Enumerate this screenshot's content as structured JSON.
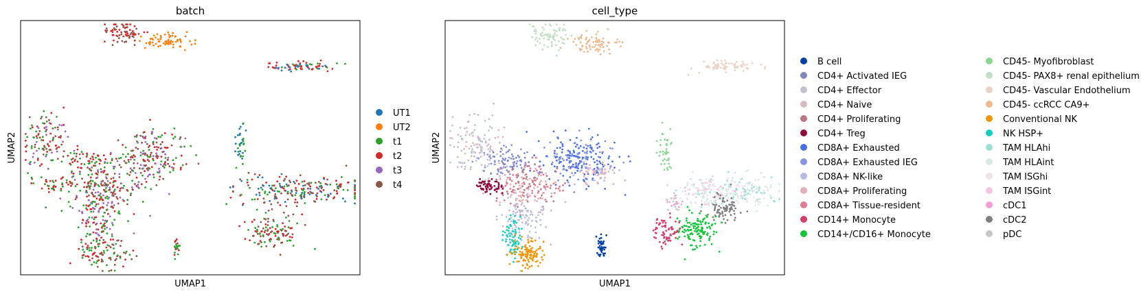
{
  "chart_data": [
    {
      "type": "scatter",
      "title": "batch",
      "xlabel": "UMAP1",
      "ylabel": "UMAP2",
      "show_ticks": false,
      "legend_placement": "right",
      "legend": [
        {
          "label": "UT1",
          "color": "#1f77b4"
        },
        {
          "label": "UT2",
          "color": "#ff7f0e"
        },
        {
          "label": "t1",
          "color": "#2ca02c"
        },
        {
          "label": "t2",
          "color": "#d62728"
        },
        {
          "label": "t3",
          "color": "#9467bd"
        },
        {
          "label": "t4",
          "color": "#8c564b"
        }
      ],
      "clusters": [
        {
          "x": 0.3,
          "y": 0.95,
          "sx": 0.03,
          "sy": 0.025,
          "n": 70,
          "colors": [
            "#d62728",
            "#8c564b",
            "#d62728"
          ]
        },
        {
          "x": 0.43,
          "y": 0.92,
          "sx": 0.035,
          "sy": 0.018,
          "n": 70,
          "colors": [
            "#ff7f0e"
          ]
        },
        {
          "x": 0.82,
          "y": 0.82,
          "sx": 0.055,
          "sy": 0.01,
          "n": 70,
          "colors": [
            "#d62728",
            "#2ca02c",
            "#1f77b4",
            "#d62728"
          ]
        },
        {
          "x": 0.07,
          "y": 0.52,
          "sx": 0.035,
          "sy": 0.06,
          "n": 120,
          "colors": [
            "#2ca02c",
            "#8c564b",
            "#d62728",
            "#9467bd"
          ]
        },
        {
          "x": 0.2,
          "y": 0.45,
          "sx": 0.035,
          "sy": 0.025,
          "n": 60,
          "colors": [
            "#2ca02c",
            "#d62728"
          ]
        },
        {
          "x": 0.38,
          "y": 0.46,
          "sx": 0.055,
          "sy": 0.055,
          "n": 200,
          "colors": [
            "#9467bd",
            "#2ca02c",
            "#d62728",
            "#8c564b"
          ]
        },
        {
          "x": 0.24,
          "y": 0.34,
          "sx": 0.05,
          "sy": 0.05,
          "n": 200,
          "colors": [
            "#d62728",
            "#2ca02c",
            "#8c564b",
            "#9467bd"
          ]
        },
        {
          "x": 0.1,
          "y": 0.36,
          "sx": 0.04,
          "sy": 0.015,
          "n": 40,
          "colors": [
            "#2ca02c",
            "#d62728"
          ]
        },
        {
          "x": 0.23,
          "y": 0.2,
          "sx": 0.035,
          "sy": 0.055,
          "n": 100,
          "colors": [
            "#2ca02c",
            "#9467bd",
            "#d62728"
          ]
        },
        {
          "x": 0.24,
          "y": 0.08,
          "sx": 0.035,
          "sy": 0.03,
          "n": 90,
          "colors": [
            "#8c564b",
            "#2ca02c",
            "#d62728"
          ]
        },
        {
          "x": 0.65,
          "y": 0.51,
          "sx": 0.008,
          "sy": 0.05,
          "n": 35,
          "colors": [
            "#2ca02c",
            "#1f77b4"
          ]
        },
        {
          "x": 0.82,
          "y": 0.33,
          "sx": 0.1,
          "sy": 0.03,
          "n": 220,
          "colors": [
            "#d62728",
            "#2ca02c",
            "#1f77b4",
            "#8c564b"
          ]
        },
        {
          "x": 0.74,
          "y": 0.17,
          "sx": 0.04,
          "sy": 0.03,
          "n": 110,
          "colors": [
            "#8c564b",
            "#2ca02c",
            "#d62728"
          ]
        },
        {
          "x": 0.46,
          "y": 0.11,
          "sx": 0.006,
          "sy": 0.02,
          "n": 20,
          "colors": [
            "#d62728",
            "#2ca02c"
          ]
        }
      ]
    },
    {
      "type": "scatter",
      "title": "cell_type",
      "xlabel": "UMAP1",
      "ylabel": "UMAP2",
      "show_ticks": false,
      "legend_placement": "right",
      "legend": [
        {
          "label": "B cell",
          "color": "#023fa5"
        },
        {
          "label": "CD4+ Activated IEG",
          "color": "#7d87b9"
        },
        {
          "label": "CD4+ Effector",
          "color": "#bec1d4"
        },
        {
          "label": "CD4+ Naive",
          "color": "#d6bcc0"
        },
        {
          "label": "CD4+ Proliferating",
          "color": "#bb7784"
        },
        {
          "label": "CD4+ Treg",
          "color": "#8e063b"
        },
        {
          "label": "CD8A+ Exhausted",
          "color": "#4a6fe3"
        },
        {
          "label": "CD8A+ Exhausted IEG",
          "color": "#8595e1"
        },
        {
          "label": "CD8A+ NK-like",
          "color": "#b5bbe3"
        },
        {
          "label": "CD8A+ Proliferating",
          "color": "#e6afb9"
        },
        {
          "label": "CD8A+ Tissue-resident",
          "color": "#e07b91"
        },
        {
          "label": "CD14+ Monocyte",
          "color": "#d33f6a"
        },
        {
          "label": "CD14+/CD16+ Monocyte",
          "color": "#11c638"
        },
        {
          "label": "CD45- Myofibroblast",
          "color": "#8dd593"
        },
        {
          "label": "CD45- PAX8+ renal epithelium",
          "color": "#c6dec7"
        },
        {
          "label": "CD45- Vascular Endothelium",
          "color": "#ead3c6"
        },
        {
          "label": "CD45- ccRCC CA9+",
          "color": "#f0b98d"
        },
        {
          "label": "Conventional NK",
          "color": "#ef9708"
        },
        {
          "label": "NK HSP+",
          "color": "#0fcfc0"
        },
        {
          "label": "TAM HLAhi",
          "color": "#9cded6"
        },
        {
          "label": "TAM HLAint",
          "color": "#d5eae7"
        },
        {
          "label": "TAM ISGhi",
          "color": "#f3e1eb"
        },
        {
          "label": "TAM ISGint",
          "color": "#f6c4e1"
        },
        {
          "label": "cDC1",
          "color": "#f79cd4"
        },
        {
          "label": "cDC2",
          "color": "#7f7f7f"
        },
        {
          "label": "pDC",
          "color": "#c7c7c7"
        }
      ],
      "clusters": [
        {
          "x": 0.31,
          "y": 0.94,
          "sx": 0.03,
          "sy": 0.025,
          "n": 80,
          "colors": [
            "#c6dec7"
          ]
        },
        {
          "x": 0.44,
          "y": 0.91,
          "sx": 0.035,
          "sy": 0.02,
          "n": 80,
          "colors": [
            "#f0b98d"
          ]
        },
        {
          "x": 0.83,
          "y": 0.82,
          "sx": 0.05,
          "sy": 0.012,
          "n": 70,
          "colors": [
            "#ead3c6"
          ]
        },
        {
          "x": 0.09,
          "y": 0.51,
          "sx": 0.04,
          "sy": 0.06,
          "n": 130,
          "colors": [
            "#d6bcc0",
            "#bec1d4"
          ]
        },
        {
          "x": 0.18,
          "y": 0.44,
          "sx": 0.035,
          "sy": 0.03,
          "n": 90,
          "colors": [
            "#7d87b9",
            "#8595e1"
          ]
        },
        {
          "x": 0.39,
          "y": 0.45,
          "sx": 0.055,
          "sy": 0.045,
          "n": 220,
          "colors": [
            "#4a6fe3",
            "#4a6fe3",
            "#8595e1"
          ]
        },
        {
          "x": 0.45,
          "y": 0.4,
          "sx": 0.035,
          "sy": 0.025,
          "n": 60,
          "colors": [
            "#e6afb9",
            "#b5bbe3"
          ]
        },
        {
          "x": 0.24,
          "y": 0.35,
          "sx": 0.05,
          "sy": 0.045,
          "n": 200,
          "colors": [
            "#e07b91",
            "#e6afb9",
            "#bb7784"
          ]
        },
        {
          "x": 0.13,
          "y": 0.35,
          "sx": 0.02,
          "sy": 0.015,
          "n": 60,
          "colors": [
            "#8e063b"
          ]
        },
        {
          "x": 0.24,
          "y": 0.22,
          "sx": 0.03,
          "sy": 0.05,
          "n": 100,
          "colors": [
            "#b5bbe3",
            "#bec1d4"
          ]
        },
        {
          "x": 0.2,
          "y": 0.15,
          "sx": 0.015,
          "sy": 0.04,
          "n": 70,
          "colors": [
            "#0fcfc0"
          ]
        },
        {
          "x": 0.24,
          "y": 0.08,
          "sx": 0.025,
          "sy": 0.025,
          "n": 110,
          "colors": [
            "#ef9708"
          ]
        },
        {
          "x": 0.46,
          "y": 0.11,
          "sx": 0.006,
          "sy": 0.022,
          "n": 40,
          "colors": [
            "#023fa5"
          ]
        },
        {
          "x": 0.65,
          "y": 0.5,
          "sx": 0.01,
          "sy": 0.05,
          "n": 40,
          "colors": [
            "#8dd593"
          ]
        },
        {
          "x": 0.87,
          "y": 0.33,
          "sx": 0.07,
          "sy": 0.03,
          "n": 200,
          "colors": [
            "#9cded6",
            "#d5eae7",
            "#f3e1eb"
          ]
        },
        {
          "x": 0.76,
          "y": 0.33,
          "sx": 0.035,
          "sy": 0.025,
          "n": 90,
          "colors": [
            "#d5eae7",
            "#f6c4e1",
            "#f3e1eb"
          ]
        },
        {
          "x": 0.82,
          "y": 0.26,
          "sx": 0.025,
          "sy": 0.025,
          "n": 80,
          "colors": [
            "#7f7f7f"
          ]
        },
        {
          "x": 0.74,
          "y": 0.18,
          "sx": 0.03,
          "sy": 0.035,
          "n": 130,
          "colors": [
            "#11c638"
          ]
        },
        {
          "x": 0.65,
          "y": 0.17,
          "sx": 0.02,
          "sy": 0.03,
          "n": 70,
          "colors": [
            "#d33f6a"
          ]
        },
        {
          "x": 0.68,
          "y": 0.28,
          "sx": 0.012,
          "sy": 0.02,
          "n": 25,
          "colors": [
            "#f79cd4",
            "#c7c7c7"
          ]
        }
      ]
    }
  ]
}
